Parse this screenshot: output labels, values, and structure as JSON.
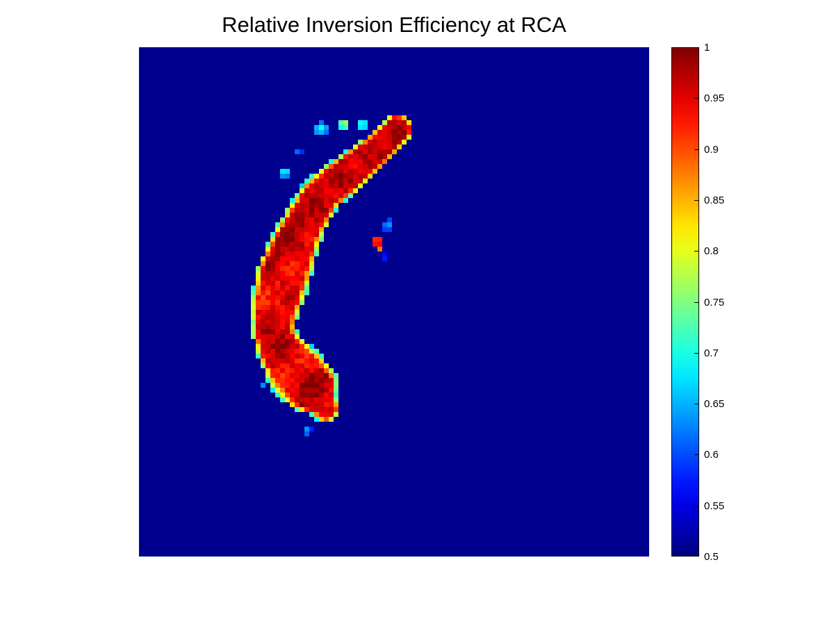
{
  "chart_data": {
    "type": "heatmap",
    "title": "Relative Inversion Efficiency at RCA",
    "xlabel": "",
    "ylabel": "",
    "colormap": "jet",
    "color_range": [
      0.5,
      1
    ],
    "background_value": 0.5,
    "colorbar": {
      "placement": "right",
      "ticks": [
        "1",
        "0.95",
        "0.9",
        "0.85",
        "0.8",
        "0.75",
        "0.7",
        "0.65",
        "0.6",
        "0.55",
        "0.5"
      ],
      "tick_values": [
        1,
        0.95,
        0.9,
        0.85,
        0.8,
        0.75,
        0.7,
        0.65,
        0.6,
        0.55,
        0.5
      ]
    },
    "grid": false,
    "axes_visible": false
  }
}
